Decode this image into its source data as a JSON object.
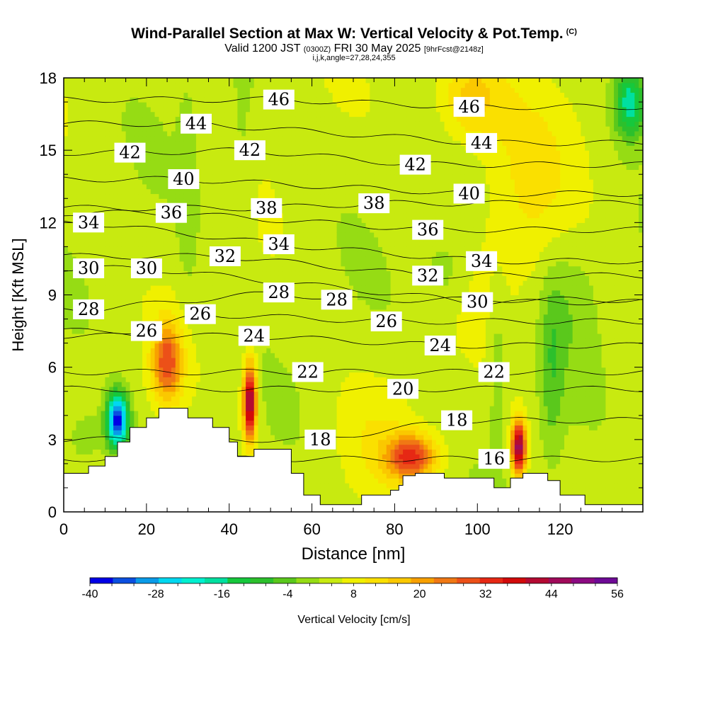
{
  "header": {
    "title": "Wind-Parallel Section at Max W: Vertical Velocity & Pot.Temp.",
    "copyright": "(C)",
    "valid_prefix": "Valid 1200 JST",
    "valid_utc": "(0300Z)",
    "valid_date": "FRI 30 May 2025",
    "forecast_info": "[9hrFcst@2148z]",
    "grid_info": "i,j,k,angle=27,28,24,355"
  },
  "colors": {
    "shading_scale": [
      "#0000e6",
      "#0b4fe0",
      "#0a9be8",
      "#00d8f0",
      "#00f0d0",
      "#00e0a0",
      "#16c83c",
      "#2cc02c",
      "#5ac81c",
      "#96dc14",
      "#c8ea10",
      "#f0f000",
      "#fae000",
      "#fac800",
      "#f8a000",
      "#f07814",
      "#ec5018",
      "#e62814",
      "#d20a0a",
      "#b40a32",
      "#a00a5a",
      "#8c0a82",
      "#6e0a96"
    ],
    "terrain": "#ffffff",
    "contour": "#000000"
  },
  "chart_data": {
    "type": "heatmap",
    "xlabel": "Distance [nm]",
    "ylabel": "Height [Kft MSL]",
    "xlim": [
      0,
      140
    ],
    "ylim": [
      0,
      18
    ],
    "x_ticks": [
      0,
      20,
      40,
      60,
      80,
      100,
      120
    ],
    "y_ticks": [
      0,
      3,
      6,
      9,
      12,
      15,
      18
    ],
    "colorbar": {
      "label": "Vertical Velocity [cm/s]",
      "min": -40,
      "max": 56,
      "step": 4,
      "tick_labels": [
        -40,
        -28,
        -16,
        -4,
        8,
        20,
        32,
        44,
        56
      ]
    },
    "terrain_profile": [
      [
        0,
        1.6
      ],
      [
        6,
        1.6
      ],
      [
        6,
        1.9
      ],
      [
        10,
        1.9
      ],
      [
        10,
        2.3
      ],
      [
        13,
        2.3
      ],
      [
        13,
        2.9
      ],
      [
        16,
        2.9
      ],
      [
        16,
        3.5
      ],
      [
        20,
        3.5
      ],
      [
        20,
        3.9
      ],
      [
        23,
        3.9
      ],
      [
        23,
        4.3
      ],
      [
        30,
        4.3
      ],
      [
        30,
        3.9
      ],
      [
        36,
        3.9
      ],
      [
        36,
        3.5
      ],
      [
        40,
        3.5
      ],
      [
        40,
        2.9
      ],
      [
        42,
        2.9
      ],
      [
        42,
        2.3
      ],
      [
        46,
        2.3
      ],
      [
        46,
        2.6
      ],
      [
        55,
        2.6
      ],
      [
        55,
        1.6
      ],
      [
        58,
        1.6
      ],
      [
        58,
        0.7
      ],
      [
        62,
        0.7
      ],
      [
        62,
        0.3
      ],
      [
        72,
        0.3
      ],
      [
        72,
        0.7
      ],
      [
        79,
        0.7
      ],
      [
        79,
        0.9
      ],
      [
        81,
        0.9
      ],
      [
        81,
        1.1
      ],
      [
        82,
        1.1
      ],
      [
        82,
        1.5
      ],
      [
        85,
        1.5
      ],
      [
        85,
        1.6
      ],
      [
        92,
        1.6
      ],
      [
        92,
        1.4
      ],
      [
        104,
        1.4
      ],
      [
        104,
        1.0
      ],
      [
        108,
        1.0
      ],
      [
        108,
        1.4
      ],
      [
        111,
        1.4
      ],
      [
        111,
        1.6
      ],
      [
        117,
        1.6
      ],
      [
        117,
        1.3
      ],
      [
        120,
        1.3
      ],
      [
        120,
        0.7
      ],
      [
        126,
        0.7
      ],
      [
        126,
        0.3
      ],
      [
        140,
        0.3
      ]
    ],
    "velocity_features": [
      {
        "x": 13,
        "y": 3.8,
        "value": -38
      },
      {
        "x": 45,
        "y": 4.6,
        "value": 44
      },
      {
        "x": 110,
        "y": 2.7,
        "value": 44
      },
      {
        "x": 25,
        "y": 6.2,
        "value": 26
      },
      {
        "x": 84,
        "y": 2.3,
        "value": 28
      },
      {
        "x": 98,
        "y": 17.2,
        "value": 14
      },
      {
        "x": 137,
        "y": 17.0,
        "value": -20
      }
    ],
    "contour_labels": [
      {
        "value": 46,
        "x": 52,
        "y": 17.1
      },
      {
        "value": 46,
        "x": 98,
        "y": 16.8
      },
      {
        "value": 44,
        "x": 32,
        "y": 16.1
      },
      {
        "value": 44,
        "x": 101,
        "y": 15.3
      },
      {
        "value": 42,
        "x": 16,
        "y": 14.9
      },
      {
        "value": 42,
        "x": 45,
        "y": 15.0
      },
      {
        "value": 42,
        "x": 85,
        "y": 14.4
      },
      {
        "value": 40,
        "x": 29,
        "y": 13.8
      },
      {
        "value": 40,
        "x": 98,
        "y": 13.2
      },
      {
        "value": 38,
        "x": 49,
        "y": 12.6
      },
      {
        "value": 38,
        "x": 75,
        "y": 12.8
      },
      {
        "value": 36,
        "x": 26,
        "y": 12.4
      },
      {
        "value": 36,
        "x": 88,
        "y": 11.7
      },
      {
        "value": 34,
        "x": 6,
        "y": 12.0
      },
      {
        "value": 34,
        "x": 52,
        "y": 11.1
      },
      {
        "value": 34,
        "x": 101,
        "y": 10.4
      },
      {
        "value": 32,
        "x": 39,
        "y": 10.6
      },
      {
        "value": 32,
        "x": 88,
        "y": 9.8
      },
      {
        "value": 30,
        "x": 6,
        "y": 10.1
      },
      {
        "value": 30,
        "x": 20,
        "y": 10.1
      },
      {
        "value": 30,
        "x": 100,
        "y": 8.7
      },
      {
        "value": 28,
        "x": 6,
        "y": 8.4
      },
      {
        "value": 28,
        "x": 52,
        "y": 9.1
      },
      {
        "value": 28,
        "x": 66,
        "y": 8.8
      },
      {
        "value": 26,
        "x": 20,
        "y": 7.5
      },
      {
        "value": 26,
        "x": 33,
        "y": 8.2
      },
      {
        "value": 26,
        "x": 78,
        "y": 7.9
      },
      {
        "value": 24,
        "x": 46,
        "y": 7.3
      },
      {
        "value": 24,
        "x": 91,
        "y": 6.9
      },
      {
        "value": 22,
        "x": 59,
        "y": 5.8
      },
      {
        "value": 22,
        "x": 104,
        "y": 5.8
      },
      {
        "value": 20,
        "x": 82,
        "y": 5.1
      },
      {
        "value": 18,
        "x": 62,
        "y": 3.0
      },
      {
        "value": 18,
        "x": 95,
        "y": 3.8
      },
      {
        "value": 16,
        "x": 104,
        "y": 2.2
      }
    ]
  }
}
